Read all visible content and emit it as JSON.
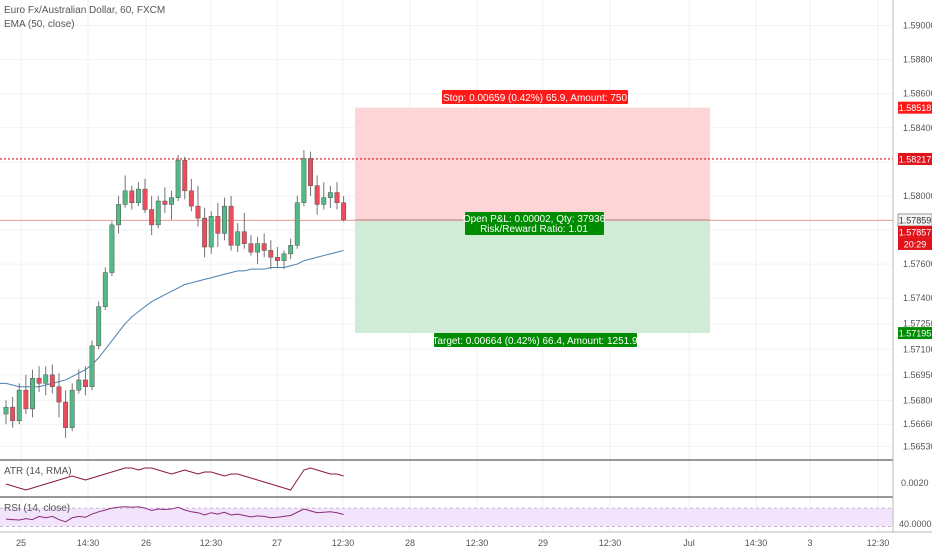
{
  "chart_data": {
    "type": "candlestick",
    "title": "Euro Fx/Australian Dollar, 60, FXCM",
    "indicator_label": "EMA (50, close)",
    "price_axis": {
      "range": [
        1.5645,
        1.5915
      ],
      "ticks": [
        "1.59000",
        "1.58800",
        "1.58600",
        "1.58400",
        "1.58200",
        "1.58000",
        "1.57800",
        "1.57600",
        "1.57400",
        "1.57250",
        "1.57100",
        "1.56950",
        "1.56800",
        "1.56660",
        "1.56530"
      ]
    },
    "time_axis": {
      "ticks": [
        "25",
        "14:30",
        "26",
        "12:30",
        "27",
        "12:30",
        "28",
        "12:30",
        "29",
        "12:30",
        "Jul",
        "14:30",
        "3",
        "12:30"
      ]
    },
    "candles": [
      {
        "o": 1.5672,
        "h": 1.568,
        "l": 1.5666,
        "c": 1.5676
      },
      {
        "o": 1.5676,
        "h": 1.5682,
        "l": 1.5664,
        "c": 1.5668
      },
      {
        "o": 1.5668,
        "h": 1.569,
        "l": 1.5666,
        "c": 1.5686
      },
      {
        "o": 1.5686,
        "h": 1.5695,
        "l": 1.5672,
        "c": 1.5675
      },
      {
        "o": 1.5675,
        "h": 1.5698,
        "l": 1.567,
        "c": 1.5693
      },
      {
        "o": 1.5693,
        "h": 1.57,
        "l": 1.5685,
        "c": 1.569
      },
      {
        "o": 1.569,
        "h": 1.57,
        "l": 1.5683,
        "c": 1.5695
      },
      {
        "o": 1.5695,
        "h": 1.5701,
        "l": 1.5684,
        "c": 1.5688
      },
      {
        "o": 1.5688,
        "h": 1.5696,
        "l": 1.567,
        "c": 1.5679
      },
      {
        "o": 1.5679,
        "h": 1.5686,
        "l": 1.5658,
        "c": 1.5664
      },
      {
        "o": 1.5664,
        "h": 1.569,
        "l": 1.5662,
        "c": 1.5686
      },
      {
        "o": 1.5686,
        "h": 1.5698,
        "l": 1.5684,
        "c": 1.5692
      },
      {
        "o": 1.5692,
        "h": 1.57,
        "l": 1.5683,
        "c": 1.5688
      },
      {
        "o": 1.5688,
        "h": 1.5715,
        "l": 1.5686,
        "c": 1.5712
      },
      {
        "o": 1.5712,
        "h": 1.5738,
        "l": 1.571,
        "c": 1.5735
      },
      {
        "o": 1.5735,
        "h": 1.5758,
        "l": 1.5733,
        "c": 1.5755
      },
      {
        "o": 1.5755,
        "h": 1.5785,
        "l": 1.5753,
        "c": 1.5783
      },
      {
        "o": 1.5783,
        "h": 1.58,
        "l": 1.5778,
        "c": 1.5795
      },
      {
        "o": 1.5795,
        "h": 1.5812,
        "l": 1.5793,
        "c": 1.5803
      },
      {
        "o": 1.5803,
        "h": 1.5806,
        "l": 1.5792,
        "c": 1.5796
      },
      {
        "o": 1.5796,
        "h": 1.5808,
        "l": 1.5794,
        "c": 1.5804
      },
      {
        "o": 1.5804,
        "h": 1.581,
        "l": 1.579,
        "c": 1.5792
      },
      {
        "o": 1.5792,
        "h": 1.58,
        "l": 1.5777,
        "c": 1.5783
      },
      {
        "o": 1.5783,
        "h": 1.58,
        "l": 1.5781,
        "c": 1.5797
      },
      {
        "o": 1.5797,
        "h": 1.5805,
        "l": 1.579,
        "c": 1.5795
      },
      {
        "o": 1.5795,
        "h": 1.5803,
        "l": 1.5786,
        "c": 1.5799
      },
      {
        "o": 1.5799,
        "h": 1.5824,
        "l": 1.5797,
        "c": 1.5821
      },
      {
        "o": 1.5821,
        "h": 1.5823,
        "l": 1.5798,
        "c": 1.5803
      },
      {
        "o": 1.5803,
        "h": 1.581,
        "l": 1.5791,
        "c": 1.5794
      },
      {
        "o": 1.5794,
        "h": 1.5806,
        "l": 1.5782,
        "c": 1.5787
      },
      {
        "o": 1.5787,
        "h": 1.5793,
        "l": 1.5764,
        "c": 1.577
      },
      {
        "o": 1.577,
        "h": 1.5791,
        "l": 1.5766,
        "c": 1.5788
      },
      {
        "o": 1.5788,
        "h": 1.5796,
        "l": 1.577,
        "c": 1.5778
      },
      {
        "o": 1.5778,
        "h": 1.5799,
        "l": 1.5774,
        "c": 1.5794
      },
      {
        "o": 1.5794,
        "h": 1.58,
        "l": 1.5768,
        "c": 1.5771
      },
      {
        "o": 1.5771,
        "h": 1.5784,
        "l": 1.5767,
        "c": 1.5779
      },
      {
        "o": 1.5779,
        "h": 1.579,
        "l": 1.5769,
        "c": 1.5772
      },
      {
        "o": 1.5772,
        "h": 1.5777,
        "l": 1.5765,
        "c": 1.5767
      },
      {
        "o": 1.5767,
        "h": 1.5776,
        "l": 1.576,
        "c": 1.5772
      },
      {
        "o": 1.5772,
        "h": 1.5778,
        "l": 1.5764,
        "c": 1.5768
      },
      {
        "o": 1.5768,
        "h": 1.5774,
        "l": 1.5757,
        "c": 1.5764
      },
      {
        "o": 1.5764,
        "h": 1.577,
        "l": 1.5758,
        "c": 1.5762
      },
      {
        "o": 1.5762,
        "h": 1.5768,
        "l": 1.5757,
        "c": 1.5766
      },
      {
        "o": 1.5766,
        "h": 1.5775,
        "l": 1.5763,
        "c": 1.5771
      },
      {
        "o": 1.5771,
        "h": 1.58,
        "l": 1.5769,
        "c": 1.5796
      },
      {
        "o": 1.5796,
        "h": 1.5827,
        "l": 1.5794,
        "c": 1.5822
      },
      {
        "o": 1.5822,
        "h": 1.5826,
        "l": 1.58,
        "c": 1.5806
      },
      {
        "o": 1.5806,
        "h": 1.5812,
        "l": 1.5789,
        "c": 1.5795
      },
      {
        "o": 1.5795,
        "h": 1.5808,
        "l": 1.5792,
        "c": 1.5799
      },
      {
        "o": 1.5799,
        "h": 1.5806,
        "l": 1.5793,
        "c": 1.5802
      },
      {
        "o": 1.5802,
        "h": 1.5808,
        "l": 1.5792,
        "c": 1.5796
      },
      {
        "o": 1.5796,
        "h": 1.58,
        "l": 1.5785,
        "c": 1.5786
      }
    ],
    "ema": [
      1.569,
      1.5689,
      1.5688,
      1.5688,
      1.5688,
      1.5688,
      1.5689,
      1.569,
      1.5691,
      1.5692,
      1.5694,
      1.5696,
      1.5698,
      1.5701,
      1.5705,
      1.571,
      1.5715,
      1.572,
      1.5725,
      1.5729,
      1.5732,
      1.5735,
      1.5738,
      1.574,
      1.5742,
      1.5744,
      1.5746,
      1.5748,
      1.5749,
      1.575,
      1.5751,
      1.5752,
      1.5753,
      1.5754,
      1.5755,
      1.5756,
      1.5756,
      1.5757,
      1.5757,
      1.5757,
      1.5758,
      1.5758,
      1.5758,
      1.5759,
      1.576,
      1.5762,
      1.5763,
      1.5764,
      1.5765,
      1.5766,
      1.5767,
      1.5768
    ],
    "levels": {
      "stop": 1.58518,
      "resistance": 1.58217,
      "entry": 1.57859,
      "current": 1.57857,
      "target": 1.57195
    },
    "price_labels": {
      "stop": "1.58518",
      "resistance": "1.58217",
      "entry": "1.57859",
      "current": "1.57857",
      "countdown": "20:29",
      "target": "1.57195"
    },
    "position": {
      "stop_text": "Stop: 0.00659 (0.42%) 65.9, Amount: 750",
      "target_text": "Target: 0.00664 (0.42%) 66.4, Amount: 1251.9",
      "pnl_text": "Open P&L: 0.00002, Qty: 37936",
      "ratio_text": "Risk/Reward Ratio: 1.01"
    },
    "atr": {
      "label": "ATR (14, RMA)",
      "tick": "0.0020",
      "values": [
        0.0019,
        0.0018,
        0.0017,
        0.0016,
        0.0017,
        0.0018,
        0.0019,
        0.002,
        0.0021,
        0.0022,
        0.0023,
        0.0022,
        0.0021,
        0.0022,
        0.0023,
        0.0024,
        0.0025,
        0.0026,
        0.0027,
        0.0027,
        0.0026,
        0.0027,
        0.0027,
        0.0026,
        0.0025,
        0.0024,
        0.0025,
        0.0026,
        0.0025,
        0.0024,
        0.0025,
        0.0025,
        0.0024,
        0.0023,
        0.0024,
        0.0024,
        0.0023,
        0.0022,
        0.0021,
        0.002,
        0.0019,
        0.0018,
        0.0017,
        0.0016,
        0.0021,
        0.0026,
        0.0027,
        0.0026,
        0.0025,
        0.0024,
        0.0024,
        0.0023
      ],
      "range": [
        0.0013,
        0.003
      ]
    },
    "rsi": {
      "label": "RSI (14, close)",
      "tick": "40.0000",
      "values": [
        46,
        45,
        44,
        47,
        45,
        52,
        49,
        52,
        45,
        40,
        49,
        52,
        50,
        57,
        62,
        66,
        70,
        72,
        73,
        72,
        73,
        70,
        65,
        68,
        67,
        68,
        72,
        66,
        62,
        60,
        55,
        60,
        57,
        61,
        55,
        57,
        54,
        51,
        53,
        52,
        49,
        50,
        52,
        54,
        61,
        68,
        64,
        60,
        61,
        62,
        60,
        56
      ],
      "range": [
        20,
        90
      ],
      "band": [
        30,
        70
      ]
    },
    "colors": {
      "bull": "#53b987",
      "bear": "#eb4d5c",
      "wick": "#737375",
      "ema": "#4a7fb0",
      "stop_zone": "#fdd5d7",
      "target_zone": "#d1ecd6",
      "stop_tag": "#ff1a1a",
      "target_tag": "#008c00",
      "resistance": "#e0131b",
      "atr_line": "#8b1a33",
      "rsi_line": "#8a2a7a",
      "rsi_band": "#f1e4fb"
    }
  }
}
